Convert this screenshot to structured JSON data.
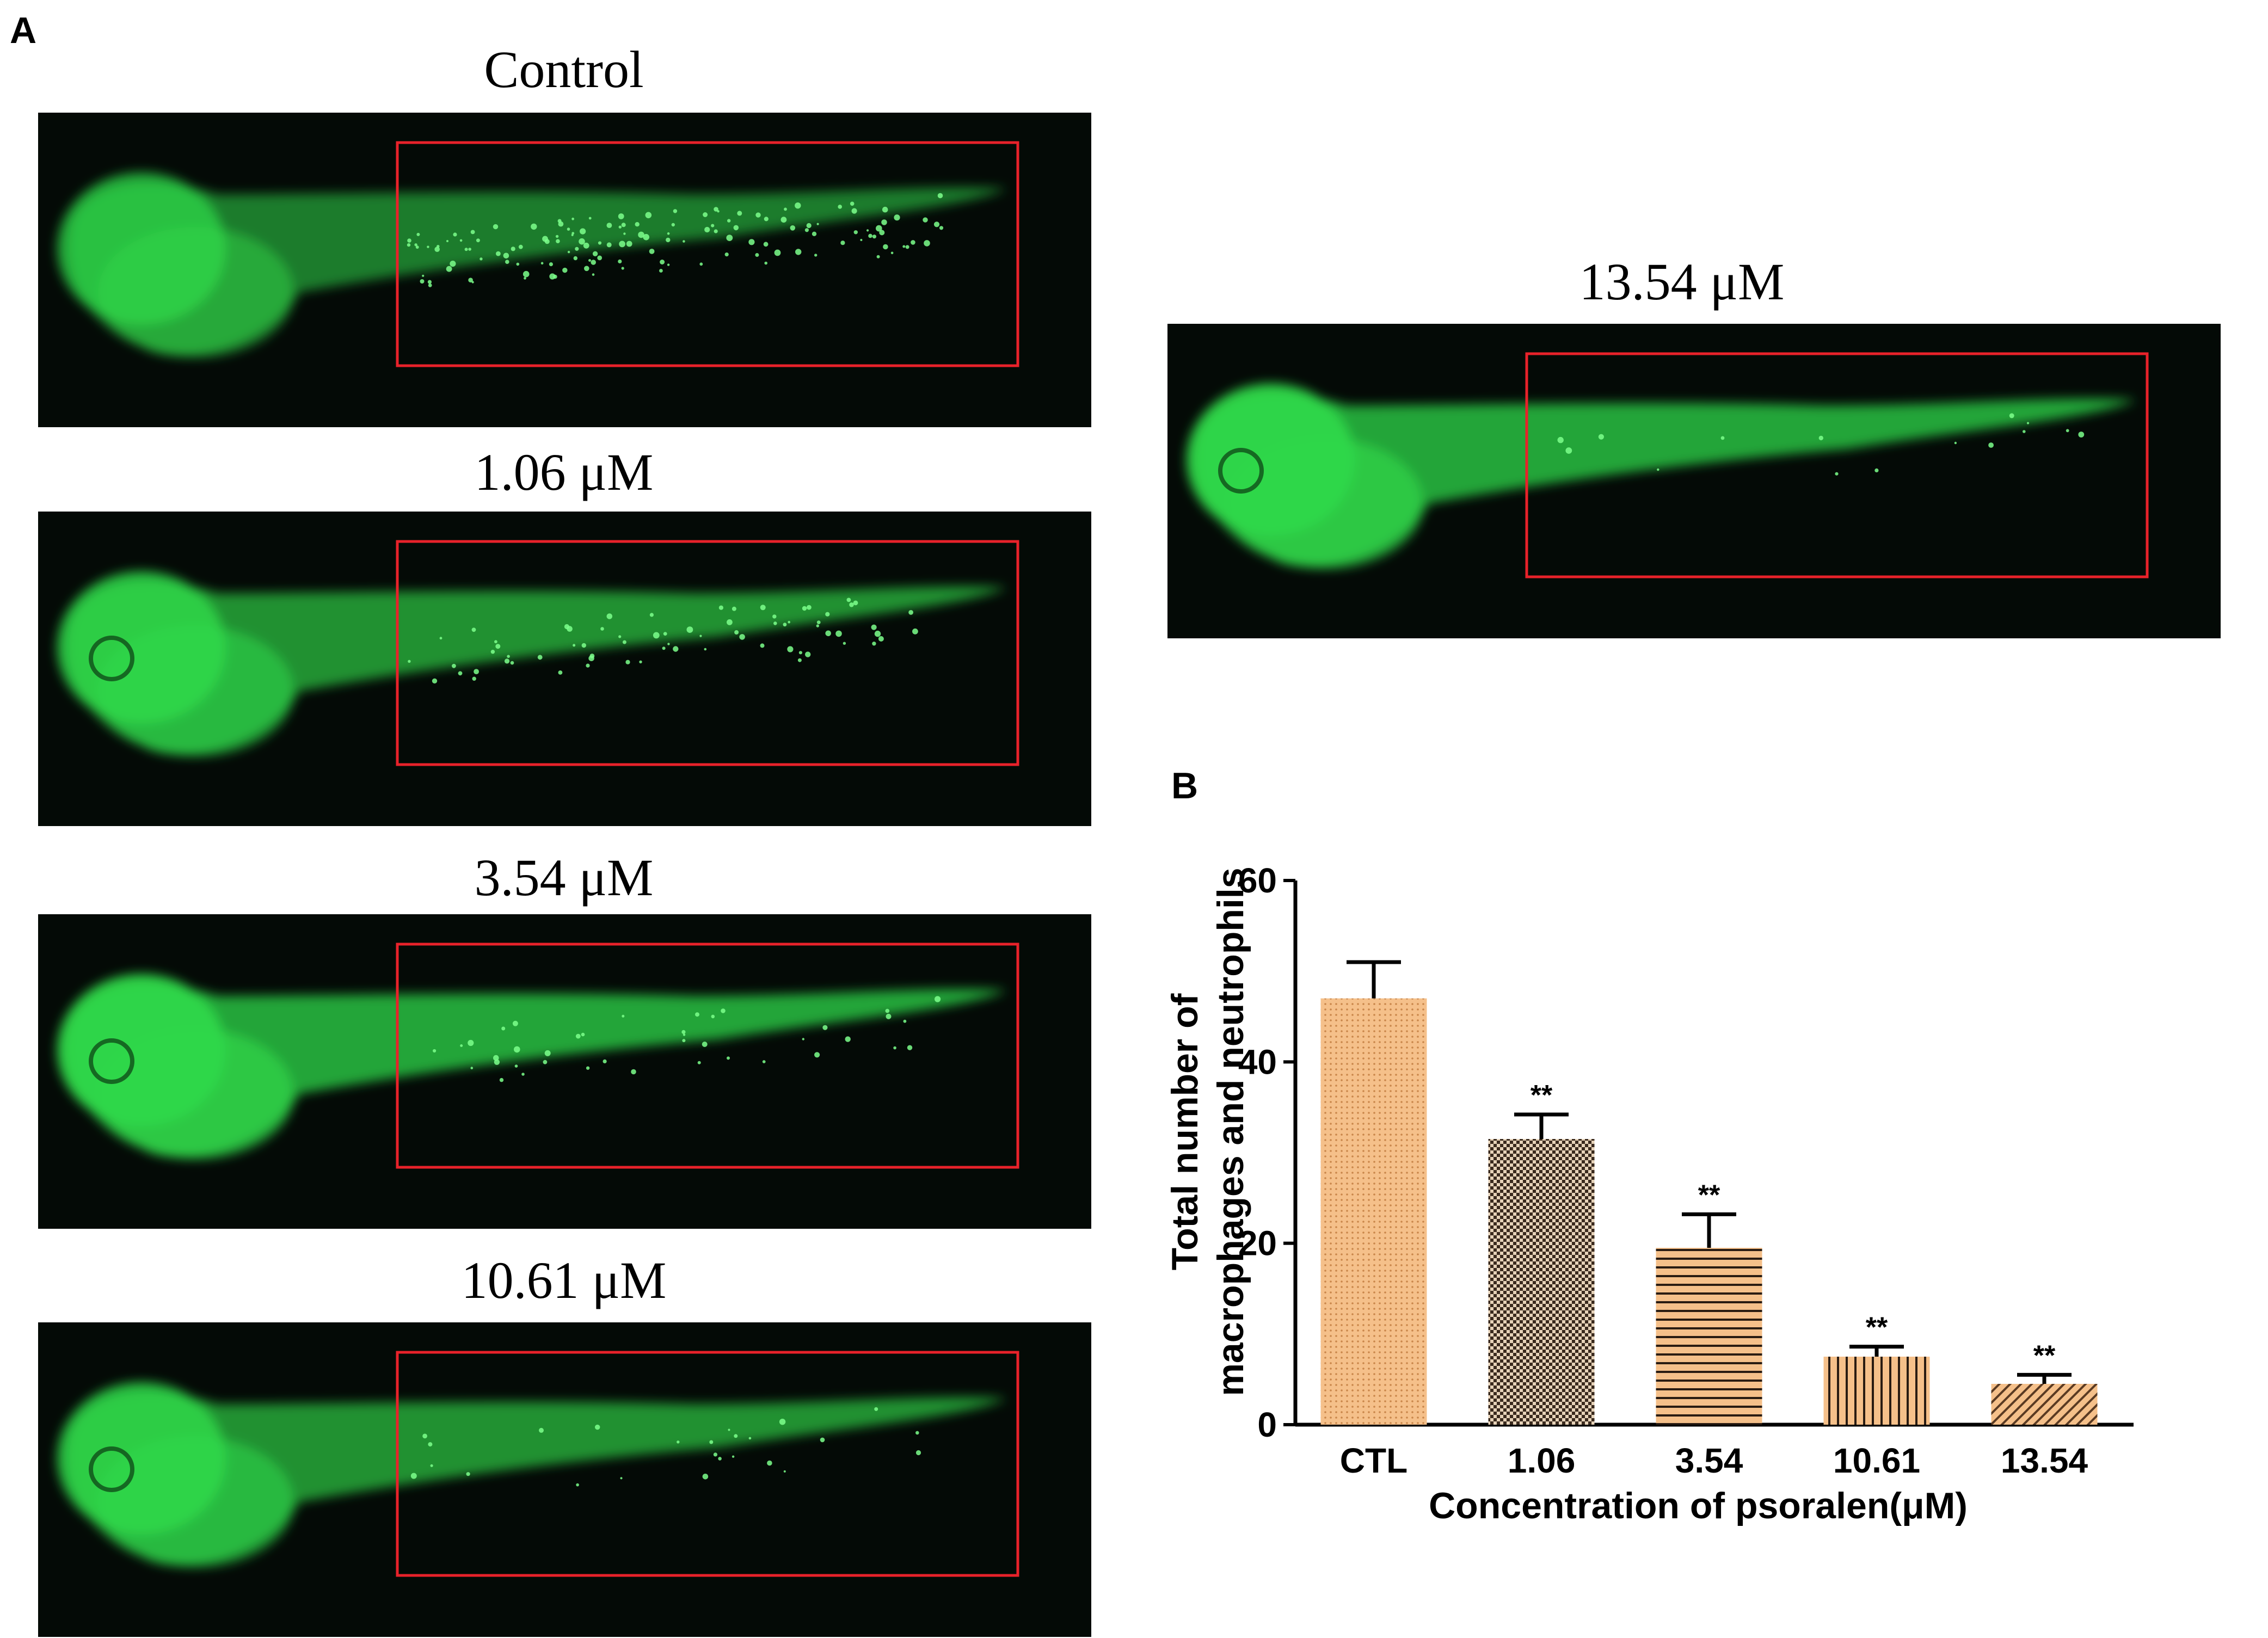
{
  "panel_a": {
    "letter": "A",
    "images": [
      {
        "id": "control",
        "title": "Control"
      },
      {
        "id": "c106",
        "title": "1.06 μM"
      },
      {
        "id": "c354",
        "title": "3.54 μM"
      },
      {
        "id": "c1061",
        "title": "10.61 μM"
      },
      {
        "id": "c1354",
        "title": "13.54 μM"
      }
    ]
  },
  "panel_b": {
    "letter": "B"
  },
  "colors": {
    "fluorescence": "#2fd84a",
    "panel_bg": "#040a06",
    "roi_box": "#e8222a",
    "bar_fill": "#f5c08a",
    "bar_pattern_dark": "#3a2a1e"
  },
  "chart_data": {
    "type": "bar",
    "categories": [
      "CTL",
      "1.06",
      "3.54",
      "10.61",
      "13.54"
    ],
    "values": [
      47,
      31.5,
      19.5,
      7.5,
      4.5
    ],
    "errors": [
      4,
      2.7,
      3.7,
      1.1,
      1
    ],
    "significance": [
      "",
      "**",
      "**",
      "**",
      "**"
    ],
    "patterns": [
      "dots",
      "checker",
      "horizontal",
      "vertical",
      "diagonal"
    ],
    "title": "",
    "xlabel": "Concentration of psoralen(μM)",
    "ylabel_lines": [
      "Total number of",
      "macrophages and neutrophils"
    ],
    "ylim": [
      0,
      60
    ],
    "yticks": [
      0,
      20,
      40,
      60
    ],
    "grid": false,
    "legend": "none"
  }
}
